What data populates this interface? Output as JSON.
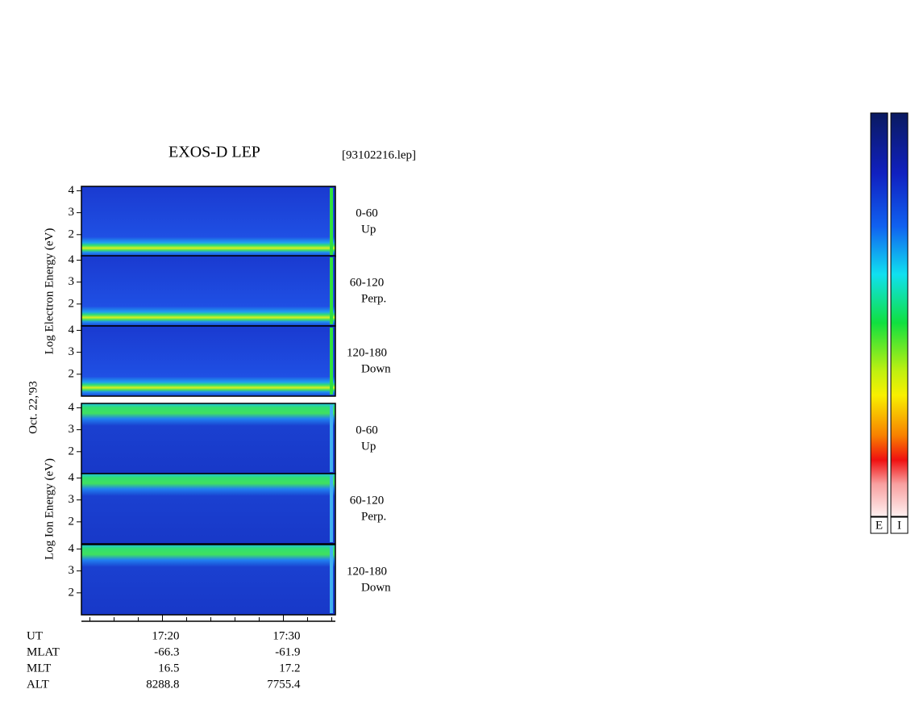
{
  "chart_data": {
    "type": "spectrogram",
    "title": "EXOS-D LEP",
    "file": "[93102216.lep]",
    "date": "Oct. 22,'93",
    "groups": [
      {
        "label": "Log Electron Energy (eV)",
        "colorbar": "E",
        "panels": [
          {
            "range": "0-60",
            "direction": "Up"
          },
          {
            "range": "60-120",
            "direction": "Perp."
          },
          {
            "range": "120-180",
            "direction": "Down"
          }
        ]
      },
      {
        "label": "Log Ion Energy (eV)",
        "colorbar": "I",
        "panels": [
          {
            "range": "0-60",
            "direction": "Up"
          },
          {
            "range": "60-120",
            "direction": "Perp."
          },
          {
            "range": "120-180",
            "direction": "Down"
          }
        ]
      }
    ],
    "ylim": [
      1,
      4.2
    ],
    "yticks": [
      2,
      3,
      4
    ],
    "xlim": [
      1033.3,
      1054.3
    ],
    "xticks": [
      {
        "value": 1040,
        "label": "17:20"
      },
      {
        "value": 1050,
        "label": "17:30"
      }
    ],
    "xminorticks": [
      1034,
      1036,
      1038,
      1042,
      1044,
      1046,
      1048,
      1052,
      1054
    ],
    "orbit": {
      "time_label": "UT",
      "rows": [
        {
          "label": "MLAT",
          "values": [
            -66.3,
            -61.9
          ]
        },
        {
          "label": "MLT",
          "values": [
            16.5,
            17.2
          ]
        },
        {
          "label": "ALT",
          "values": [
            8288.8,
            7755.4
          ]
        }
      ]
    }
  }
}
